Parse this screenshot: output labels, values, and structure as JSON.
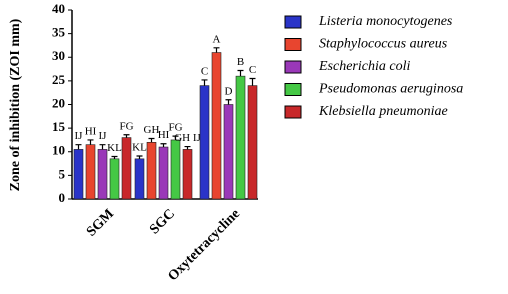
{
  "chart_data": {
    "type": "bar",
    "y_label": "Zone of inhibition (ZOI mm)",
    "categories": [
      "SGM",
      "SGC",
      "Oxytetracycline"
    ],
    "ylim": [
      0,
      40
    ],
    "yticks": [
      0,
      5,
      10,
      15,
      20,
      25,
      30,
      35,
      40
    ],
    "series": [
      {
        "name": "Listeria monocytogenes",
        "color": "#2a34c8",
        "values": [
          10.5,
          8.5,
          24
        ],
        "errors": [
          1,
          0.6,
          1.2
        ],
        "labels": [
          "IJ",
          "KL",
          "C"
        ]
      },
      {
        "name": "Staphylococcus aureus",
        "color": "#e8452f",
        "values": [
          11.5,
          12,
          31
        ],
        "errors": [
          1,
          0.8,
          1
        ],
        "labels": [
          "HI",
          "GH",
          "A"
        ]
      },
      {
        "name": "Escherichia coli",
        "color": "#9a38b8",
        "values": [
          10.5,
          11,
          20
        ],
        "errors": [
          1,
          0.7,
          1
        ],
        "labels": [
          "IJ",
          "HI",
          "D"
        ]
      },
      {
        "name": "Pseudomonas aeruginosa",
        "color": "#45c845",
        "values": [
          8.5,
          12.5,
          26
        ],
        "errors": [
          0.5,
          0.8,
          1.2
        ],
        "labels": [
          "KL",
          "FG",
          "B"
        ]
      },
      {
        "name": "Klebsiella pneumoniae",
        "color": "#c8282a",
        "values": [
          13,
          10.5,
          24
        ],
        "errors": [
          0.6,
          0.6,
          1.5
        ],
        "labels": [
          "FG",
          "GH IJ",
          "C"
        ]
      }
    ]
  }
}
